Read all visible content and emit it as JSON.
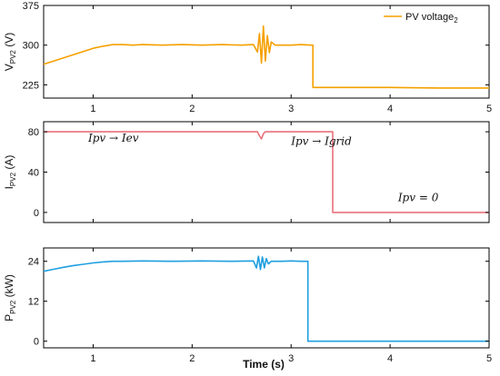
{
  "chart_data": [
    {
      "type": "line",
      "ylabel_main": "V",
      "ylabel_sub": "PV2",
      "ylabel_unit": " (V)",
      "xlim": [
        0.5,
        5
      ],
      "ylim": [
        200,
        375
      ],
      "yticks": [
        "225",
        "300",
        "375"
      ],
      "ytick_values": [
        225,
        300,
        375
      ],
      "legend": {
        "label": "PV voltage",
        "subscript": "2",
        "position": "top-right"
      },
      "series": [
        {
          "name": "PV voltage2",
          "color": "#f5a000",
          "x": [
            0.5,
            0.6,
            0.7,
            0.8,
            0.9,
            1.0,
            1.1,
            1.2,
            1.3,
            1.4,
            1.5,
            1.7,
            1.9,
            2.1,
            2.3,
            2.5,
            2.62,
            2.66,
            2.68,
            2.7,
            2.72,
            2.74,
            2.76,
            2.78,
            2.8,
            2.84,
            2.9,
            3.0,
            3.1,
            3.2,
            3.22,
            3.22,
            3.5,
            4.0,
            4.5,
            5.0
          ],
          "y": [
            264,
            270,
            276,
            282,
            288,
            294,
            298,
            301,
            301,
            300,
            301,
            300,
            301,
            300,
            301,
            300,
            301,
            287,
            322,
            266,
            336,
            270,
            318,
            286,
            306,
            300,
            300,
            300,
            301,
            300,
            300,
            220,
            220,
            220,
            219,
            219
          ]
        }
      ],
      "annotations": []
    },
    {
      "type": "line",
      "ylabel_main": "I",
      "ylabel_sub": "PV2",
      "ylabel_unit": " (A)",
      "xlim": [
        0.5,
        5
      ],
      "ylim": [
        -10,
        90
      ],
      "yticks": [
        "0",
        "40",
        "80"
      ],
      "ytick_values": [
        0,
        40,
        80
      ],
      "series": [
        {
          "color": "#e8707a",
          "x": [
            0.5,
            1.0,
            1.5,
            2.0,
            2.5,
            2.66,
            2.68,
            2.7,
            2.72,
            2.74,
            3.0,
            3.4,
            3.42,
            3.42,
            4.0,
            4.5,
            5.0
          ],
          "y": [
            80,
            80,
            80,
            80,
            80,
            80,
            76,
            73,
            78,
            80,
            80,
            80,
            80,
            0,
            0,
            0,
            0
          ]
        }
      ],
      "annotations": [
        {
          "text": "Ipv → Iev",
          "x": 0.95,
          "y": 70
        },
        {
          "text": "Ipv → Igrid",
          "x": 3.0,
          "y": 67
        },
        {
          "text": "Ipv = 0",
          "x": 4.08,
          "y": 11
        }
      ]
    },
    {
      "type": "line",
      "ylabel_main": "P",
      "ylabel_sub": "PV2",
      "ylabel_unit": " (kW)",
      "xlabel": "Time (s)",
      "xlim": [
        0.5,
        5
      ],
      "xticks": [
        "1",
        "2",
        "3",
        "4",
        "5"
      ],
      "xtick_values": [
        1,
        2,
        3,
        4,
        5
      ],
      "ylim": [
        -2,
        28
      ],
      "yticks": [
        "0",
        "12",
        "24"
      ],
      "ytick_values": [
        0,
        12,
        24
      ],
      "series": [
        {
          "color": "#1f9fe0",
          "x": [
            0.5,
            0.6,
            0.7,
            0.8,
            0.9,
            1.0,
            1.1,
            1.2,
            1.3,
            1.5,
            1.8,
            2.1,
            2.4,
            2.62,
            2.65,
            2.67,
            2.69,
            2.71,
            2.73,
            2.75,
            2.77,
            2.8,
            2.9,
            3.0,
            3.1,
            3.17,
            3.17,
            3.5,
            4.0,
            4.5,
            5.0
          ],
          "y": [
            21.0,
            21.6,
            22.2,
            22.7,
            23.1,
            23.5,
            23.8,
            24.0,
            24.0,
            24.1,
            24.0,
            24.1,
            24.0,
            24.1,
            22.0,
            25.5,
            21.5,
            25.3,
            22.0,
            24.8,
            23.2,
            24.0,
            24.0,
            24.1,
            24.0,
            24.0,
            0,
            0,
            0,
            0,
            0
          ]
        }
      ],
      "annotations": []
    }
  ]
}
